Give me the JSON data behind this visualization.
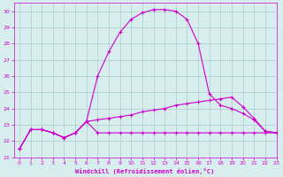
{
  "xlabel": "Windchill (Refroidissement éolien,°C)",
  "xlim": [
    -0.5,
    23
  ],
  "ylim": [
    21,
    30.5
  ],
  "xticks": [
    0,
    1,
    2,
    3,
    4,
    5,
    6,
    7,
    8,
    9,
    10,
    11,
    12,
    13,
    14,
    15,
    16,
    17,
    18,
    19,
    20,
    21,
    22,
    23
  ],
  "yticks": [
    21,
    22,
    23,
    24,
    25,
    26,
    27,
    28,
    29,
    30
  ],
  "bg_color": "#d8eeee",
  "line_color": "#cc00cc",
  "grid_color": "#aacccc",
  "line1_x": [
    0,
    1,
    2,
    3,
    4,
    5,
    6,
    7,
    8,
    9,
    10,
    11,
    12,
    13,
    14,
    15,
    16,
    17,
    18,
    19,
    20,
    21,
    22,
    23
  ],
  "line1_y": [
    21.5,
    22.7,
    22.7,
    22.5,
    22.2,
    22.5,
    23.2,
    26.0,
    27.5,
    28.7,
    29.5,
    29.9,
    30.1,
    30.1,
    30.0,
    29.5,
    28.0,
    24.9,
    24.2,
    24.0,
    23.7,
    23.3,
    22.6,
    22.5
  ],
  "line2_x": [
    0,
    1,
    2,
    3,
    4,
    5,
    6,
    7,
    8,
    9,
    10,
    11,
    12,
    13,
    14,
    15,
    16,
    17,
    18,
    19,
    20,
    21,
    22,
    23
  ],
  "line2_y": [
    21.5,
    22.7,
    22.7,
    22.5,
    22.2,
    22.5,
    23.2,
    23.3,
    23.4,
    23.5,
    23.6,
    23.8,
    23.9,
    24.0,
    24.2,
    24.3,
    24.4,
    24.5,
    24.6,
    24.7,
    24.1,
    23.4,
    22.6,
    22.5
  ],
  "line3_x": [
    0,
    1,
    2,
    3,
    4,
    5,
    6,
    7,
    8,
    9,
    10,
    11,
    12,
    13,
    14,
    15,
    16,
    17,
    18,
    19,
    20,
    21,
    22,
    23
  ],
  "line3_y": [
    21.5,
    22.7,
    22.7,
    22.5,
    22.2,
    22.5,
    23.2,
    22.5,
    22.5,
    22.5,
    22.5,
    22.5,
    22.5,
    22.5,
    22.5,
    22.5,
    22.5,
    22.5,
    22.5,
    22.5,
    22.5,
    22.5,
    22.5,
    22.5
  ]
}
